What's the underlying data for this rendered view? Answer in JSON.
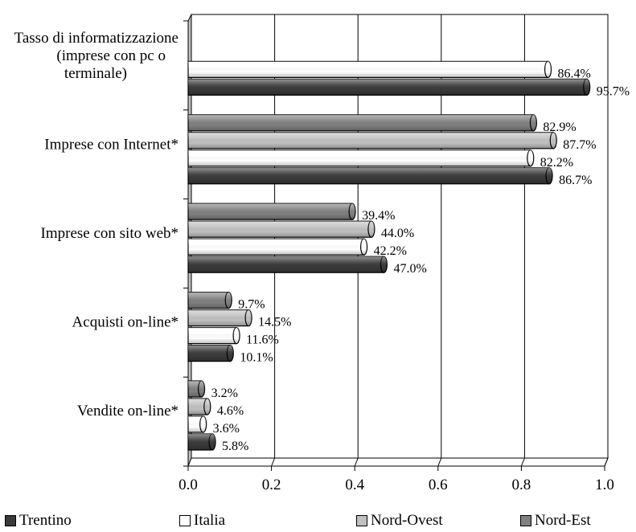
{
  "chart_data": {
    "type": "bar",
    "orientation": "horizontal",
    "categories": [
      [
        "Tasso di informatizzazione",
        "(imprese con pc o",
        "terminale)"
      ],
      [
        "Imprese con Internet*"
      ],
      [
        "Imprese con sito web*"
      ],
      [
        "Acquisti on-line*"
      ],
      [
        "Vendite on-line*"
      ]
    ],
    "series": [
      {
        "name": "Trentino",
        "color": "#3a3a3a",
        "values": [
          0.957,
          0.867,
          0.47,
          0.101,
          0.058
        ],
        "labels": [
          "95.7%",
          "86.7%",
          "47.0%",
          "10.1%",
          "5.8%"
        ]
      },
      {
        "name": "Italia",
        "color": "#ffffff",
        "values": [
          0.864,
          0.822,
          0.422,
          0.116,
          0.036
        ],
        "labels": [
          "86.4%",
          "82.2%",
          "42.2%",
          "11.6%",
          "3.6%"
        ]
      },
      {
        "name": "Nord-Ovest",
        "color": "#c0c0c0",
        "values": [
          null,
          0.877,
          0.44,
          0.145,
          0.046
        ],
        "labels": [
          null,
          "87.7%",
          "44.0%",
          "14.5%",
          "4.6%"
        ]
      },
      {
        "name": "Nord-Est",
        "color": "#808080",
        "values": [
          null,
          0.829,
          0.394,
          0.097,
          0.032
        ],
        "labels": [
          null,
          "82.9%",
          "39.4%",
          "9.7%",
          "3.2%"
        ]
      }
    ],
    "xlim": [
      0,
      1.0
    ],
    "xticks": [
      "0.0",
      "0.2",
      "0.4",
      "0.6",
      "0.8",
      "1.0"
    ],
    "title": "",
    "xlabel": "",
    "ylabel": "",
    "grid": "vertical",
    "legend_position": "bottom"
  }
}
